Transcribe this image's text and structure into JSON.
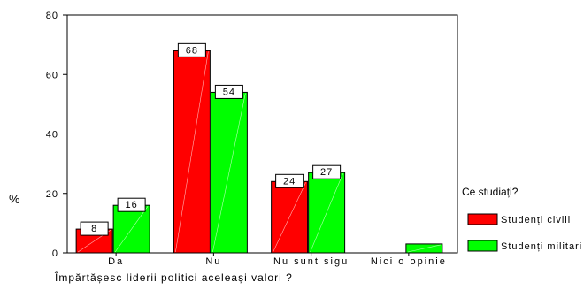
{
  "chart_data": {
    "type": "bar",
    "categories": [
      "Da",
      "Nu",
      "Nu sunt sigu",
      "Nici o opinie"
    ],
    "series": [
      {
        "name": "Studenți civili",
        "color": "#ff0000",
        "values": [
          8,
          68,
          24,
          null
        ],
        "labels": [
          "8",
          "68",
          "24",
          ""
        ]
      },
      {
        "name": "Studenți militari",
        "color": "#00ff00",
        "values": [
          16,
          54,
          27,
          3
        ],
        "labels": [
          "16",
          "54",
          "27",
          ""
        ]
      }
    ],
    "xlabel": "Împărtășesc liderii politici aceleași valori ?",
    "ylabel": "%",
    "ylim": [
      0,
      80
    ],
    "yticks": [
      "0",
      "20",
      "40",
      "60",
      "80"
    ],
    "legend": {
      "title": "Ce studiați?",
      "position": "right"
    },
    "grid": false
  }
}
